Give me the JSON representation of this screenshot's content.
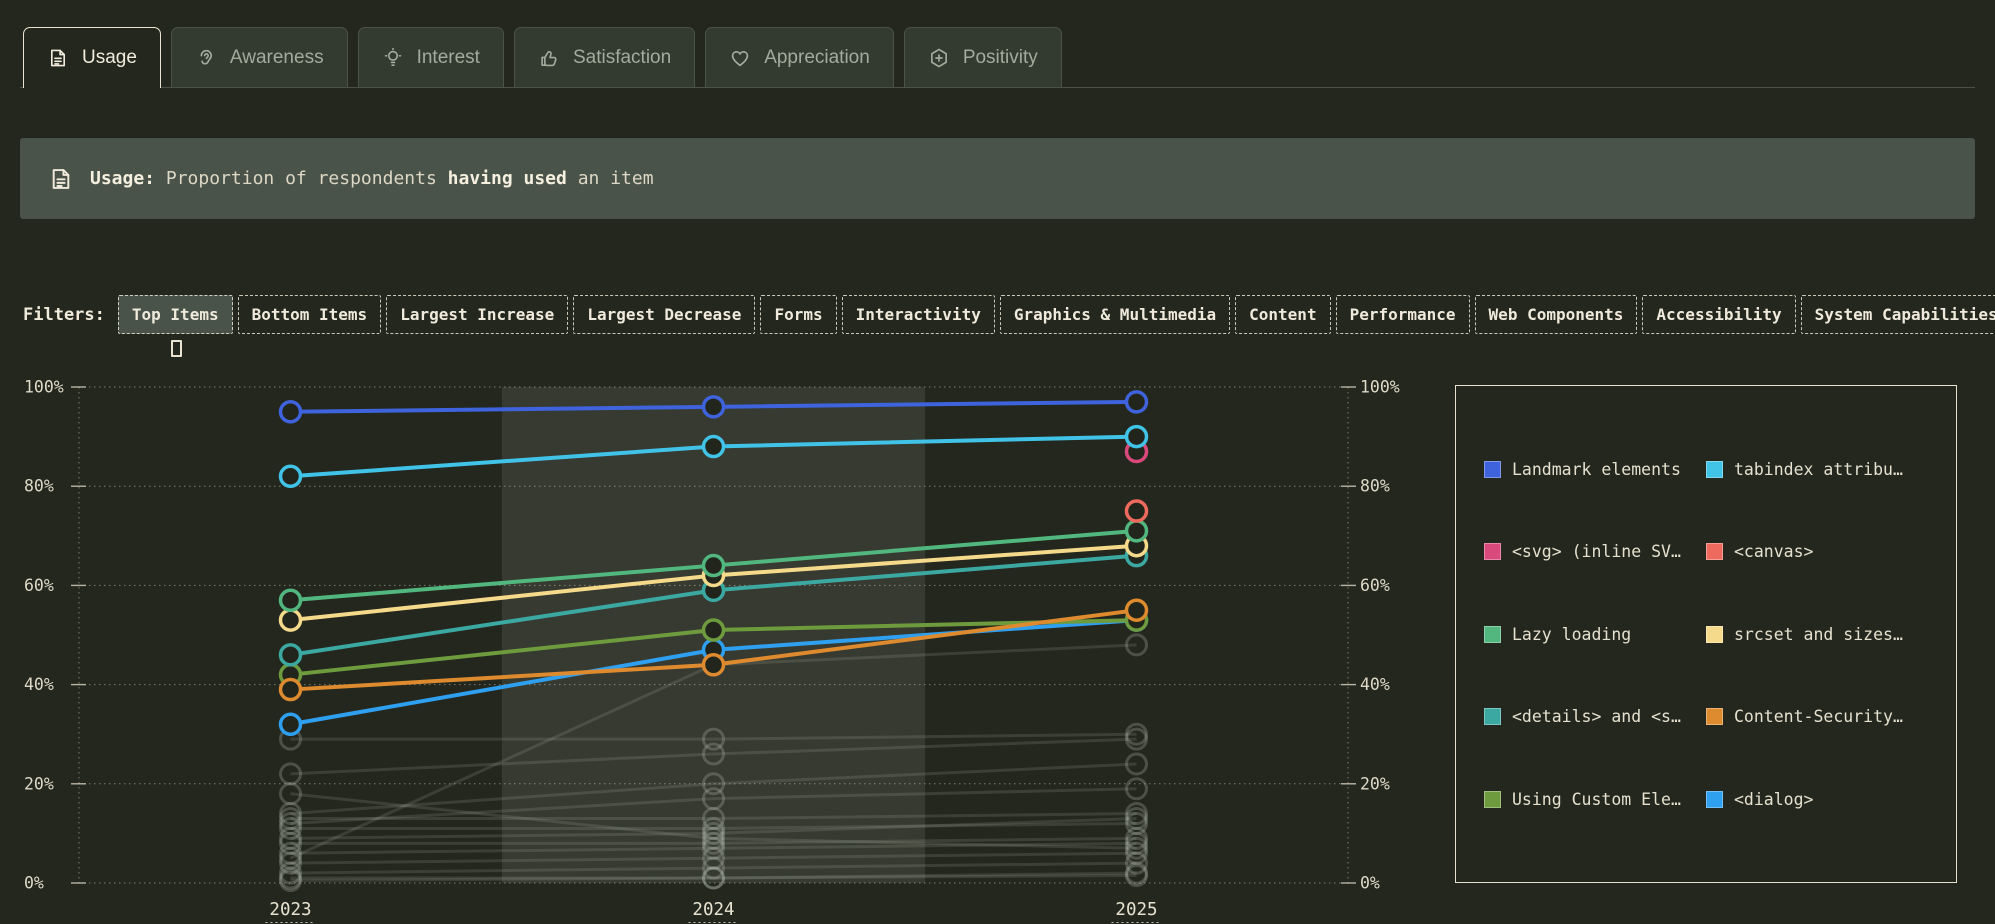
{
  "tabs": [
    {
      "label": "Usage",
      "icon": "document-icon",
      "active": true
    },
    {
      "label": "Awareness",
      "icon": "ear-icon",
      "active": false
    },
    {
      "label": "Interest",
      "icon": "lightbulb-icon",
      "active": false
    },
    {
      "label": "Satisfaction",
      "icon": "thumbs-up-icon",
      "active": false
    },
    {
      "label": "Appreciation",
      "icon": "heart-icon",
      "active": false
    },
    {
      "label": "Positivity",
      "icon": "hexagon-plus-icon",
      "active": false
    }
  ],
  "banner": {
    "icon": "document-icon",
    "segments": [
      {
        "text": "Usage:",
        "bold": true
      },
      {
        "text": " Proportion of respondents ",
        "bold": false
      },
      {
        "text": "having used",
        "bold": true
      },
      {
        "text": " an item",
        "bold": false
      }
    ]
  },
  "filters": {
    "label": "Filters:",
    "items": [
      {
        "label": "Top Items",
        "active": true
      },
      {
        "label": "Bottom Items",
        "active": false
      },
      {
        "label": "Largest Increase",
        "active": false
      },
      {
        "label": "Largest Decrease",
        "active": false
      },
      {
        "label": "Forms",
        "active": false
      },
      {
        "label": "Interactivity",
        "active": false
      },
      {
        "label": "Graphics & Multimedia",
        "active": false
      },
      {
        "label": "Content",
        "active": false
      },
      {
        "label": "Performance",
        "active": false
      },
      {
        "label": "Web Components",
        "active": false
      },
      {
        "label": "Accessibility",
        "active": false
      },
      {
        "label": "System Capabilities",
        "active": false
      }
    ]
  },
  "chart_data": {
    "type": "line",
    "x_labels": [
      "2023",
      "2024",
      "2025"
    ],
    "y_axis": {
      "min": 0,
      "max": 100,
      "tick_values": [
        0,
        20,
        40,
        60,
        80,
        100
      ],
      "tick_labels": [
        "0%",
        "20%",
        "40%",
        "60%",
        "80%",
        "100%"
      ],
      "unit": "%",
      "dual_axis": true,
      "grid": "dotted"
    },
    "highlight_band": {
      "from_fraction": 0.3333,
      "to_fraction": 0.6667
    },
    "series": [
      {
        "name": "Landmark elements",
        "color": "#3e63dd",
        "values": [
          95,
          96,
          97
        ]
      },
      {
        "name": "tabindex attribu…",
        "color": "#41c3e8",
        "values": [
          82,
          88,
          90
        ]
      },
      {
        "name": "<svg> (inline SV…",
        "color": "#d9497c",
        "values": [
          null,
          null,
          87
        ]
      },
      {
        "name": "<canvas>",
        "color": "#ef6a5e",
        "values": [
          null,
          null,
          75
        ]
      },
      {
        "name": "Lazy loading",
        "color": "#52b77e",
        "values": [
          57,
          64,
          71
        ]
      },
      {
        "name": "srcset and sizes…",
        "color": "#f6da8b",
        "values": [
          53,
          62,
          68
        ]
      },
      {
        "name": "<details> and <s…",
        "color": "#3ba8a2",
        "values": [
          46,
          59,
          66
        ]
      },
      {
        "name": "Content-Security…",
        "color": "#de8a2f",
        "values": [
          39,
          44,
          55
        ]
      },
      {
        "name": "Using Custom Ele…",
        "color": "#6d9b3d",
        "values": [
          42,
          51,
          53
        ]
      },
      {
        "name": "<dialog>",
        "color": "#2f9ff0",
        "values": [
          32,
          47,
          53
        ]
      }
    ],
    "background_series": [
      {
        "values": [
          29,
          29,
          30
        ]
      },
      {
        "values": [
          22,
          26,
          29
        ]
      },
      {
        "values": [
          14,
          20,
          24
        ]
      },
      {
        "values": [
          12,
          17,
          19
        ]
      },
      {
        "values": [
          13,
          13,
          14
        ]
      },
      {
        "values": [
          11,
          11,
          12
        ]
      },
      {
        "values": [
          9,
          10,
          13
        ]
      },
      {
        "values": [
          8,
          8,
          9
        ]
      },
      {
        "values": [
          6,
          7,
          8
        ]
      },
      {
        "values": [
          5,
          44,
          48
        ]
      },
      {
        "values": [
          18,
          9,
          7
        ]
      },
      {
        "values": [
          4,
          5,
          6
        ]
      },
      {
        "values": [
          2,
          3,
          4
        ]
      },
      {
        "values": [
          1,
          1,
          2
        ]
      },
      {
        "values": [
          0.5,
          1,
          1.5
        ]
      }
    ]
  },
  "legend": {
    "items": [
      {
        "label": "Landmark elements",
        "color": "#3e63dd"
      },
      {
        "label": "tabindex attribu…",
        "color": "#41c3e8"
      },
      {
        "label": "<svg> (inline SV…",
        "color": "#d9497c"
      },
      {
        "label": "<canvas>",
        "color": "#ef6a5e"
      },
      {
        "label": "Lazy loading",
        "color": "#52b77e"
      },
      {
        "label": "srcset and sizes…",
        "color": "#f6da8b"
      },
      {
        "label": "<details> and <s…",
        "color": "#3ba8a2"
      },
      {
        "label": "Content-Security…",
        "color": "#de8a2f"
      },
      {
        "label": "Using Custom Ele…",
        "color": "#6d9b3d"
      },
      {
        "label": "<dialog>",
        "color": "#2f9ff0"
      }
    ]
  }
}
